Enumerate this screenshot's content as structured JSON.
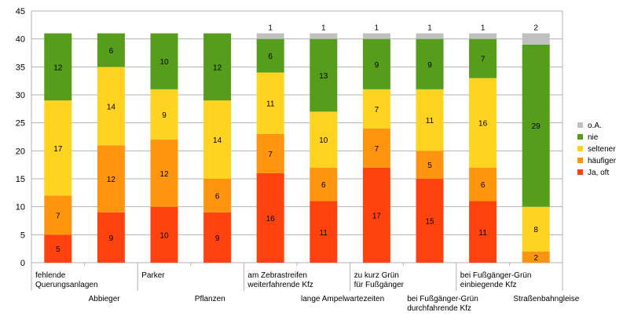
{
  "chart_data": {
    "type": "bar",
    "stacked": true,
    "categories": [
      [
        "fehlende",
        "Querungsanlagen"
      ],
      [
        "Abbieger"
      ],
      [
        "Parker"
      ],
      [
        "Pflanzen"
      ],
      [
        "am Zebrastreifen",
        "weiterfahrende Kfz"
      ],
      [
        "lange Ampelwartezeiten"
      ],
      [
        "zu kurz Grün",
        "für Fußgänger"
      ],
      [
        "bei Fußgänger-Grün",
        "durchfahrende Kfz"
      ],
      [
        "bei Fußgänger-Grün",
        "einbiegende Kfz"
      ],
      [
        "Straßenbahngleise"
      ]
    ],
    "series": [
      {
        "name": "Ja, oft",
        "color": "#ff420e",
        "values": [
          5,
          9,
          10,
          9,
          16,
          11,
          17,
          15,
          11,
          0
        ]
      },
      {
        "name": "häufiger",
        "color": "#ff950e",
        "values": [
          7,
          12,
          12,
          6,
          7,
          6,
          7,
          5,
          6,
          2
        ]
      },
      {
        "name": "seltener",
        "color": "#ffd320",
        "values": [
          17,
          14,
          9,
          14,
          11,
          10,
          7,
          11,
          16,
          8
        ]
      },
      {
        "name": "nie",
        "color": "#579d1c",
        "values": [
          12,
          6,
          10,
          12,
          6,
          13,
          9,
          9,
          7,
          29
        ]
      },
      {
        "name": "o.A.",
        "color": "#c0c0c0",
        "values": [
          0,
          0,
          0,
          0,
          1,
          1,
          1,
          1,
          1,
          2
        ]
      }
    ],
    "ylim": [
      0,
      45
    ],
    "yticks": [
      0,
      5,
      10,
      15,
      20,
      25,
      30,
      35,
      40,
      45
    ],
    "grid": true,
    "legend_position": "right",
    "legend_order": [
      "o.A.",
      "nie",
      "seltener",
      "häufiger",
      "Ja, oft"
    ]
  }
}
